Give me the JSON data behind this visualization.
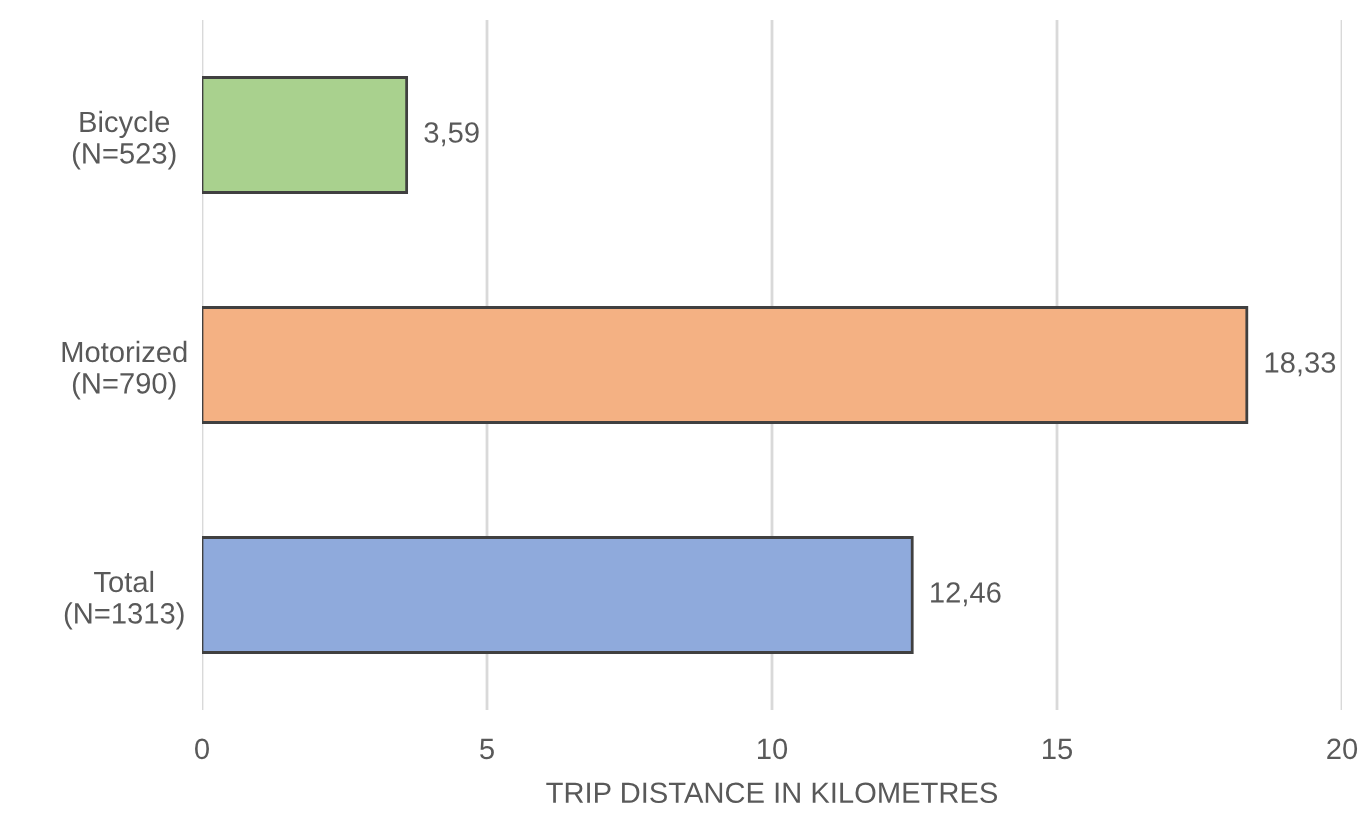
{
  "chart_data": {
    "type": "bar",
    "orientation": "horizontal",
    "xlabel": "TRIP DISTANCE IN KILOMETRES",
    "categories": [
      "Bicycle\n(N=523)",
      "Motorized\n(N=790)",
      "Total\n(N=1313)"
    ],
    "values": [
      3.59,
      18.33,
      12.46
    ],
    "colors": [
      "#a9d18e",
      "#f4b183",
      "#8faadc"
    ],
    "value_labels": [
      "3,59",
      "18,33",
      "12,46"
    ],
    "xlim": [
      0,
      20
    ],
    "xticks": [
      0,
      5,
      10,
      15,
      20
    ],
    "grid": "x",
    "legend": false
  }
}
